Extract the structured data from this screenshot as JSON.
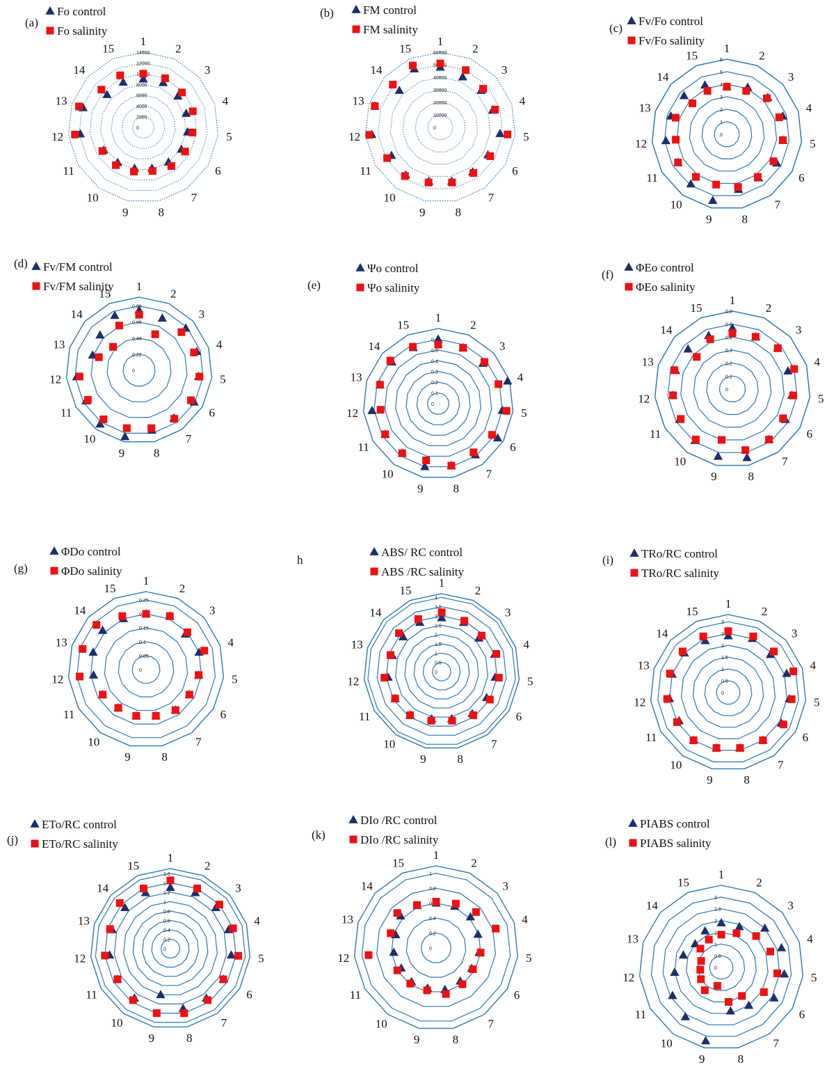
{
  "colors": {
    "control": "#1b2f6b",
    "salinity": "#ee1111",
    "grid": "#2b78b8"
  },
  "chart_data": [
    {
      "type": "radar",
      "panel": "(a)",
      "spoke_labels": [
        "1",
        "2",
        "3",
        "4",
        "5",
        "6",
        "7",
        "8",
        "9",
        "10",
        "11",
        "12",
        "13",
        "14",
        "15"
      ],
      "ticks": [
        "0",
        "2000",
        "4000",
        "6000",
        "8000",
        "10000",
        "12000",
        "14000"
      ],
      "rmax": 14000,
      "series": [
        {
          "name": "Fo control",
          "marker": "triangle",
          "values": [
            9000,
            9100,
            8700,
            8400,
            8300,
            8200,
            8000,
            7800,
            7800,
            8100,
            8500,
            11800,
            11800,
            9100,
            9200
          ]
        },
        {
          "name": "Fo salinity",
          "marker": "square",
          "values": [
            10000,
            10000,
            9700,
            9700,
            9200,
            9000,
            8900,
            8300,
            8400,
            8700,
            8800,
            12800,
            12600,
            10500,
            10600
          ]
        }
      ]
    },
    {
      "type": "radar",
      "panel": "(b)",
      "spoke_labels": [
        "1",
        "2",
        "3",
        "4",
        "5",
        "6",
        "7",
        "8",
        "9",
        "10",
        "11",
        "12",
        "13",
        "14",
        "15"
      ],
      "ticks": [
        "0",
        "10000",
        "20000",
        "30000",
        "40000",
        "50000",
        "60000"
      ],
      "rmax": 60000,
      "series": [
        {
          "name": "FM control",
          "marker": "triangle",
          "values": [
            48000,
            44000,
            44000,
            44000,
            48000,
            44000,
            44000,
            44000,
            44000,
            47000,
            45000,
            55000,
            55000,
            44000,
            51000
          ]
        },
        {
          "name": "FM salinity",
          "marker": "square",
          "values": [
            51000,
            50000,
            46000,
            46000,
            54000,
            46000,
            45000,
            45000,
            45000,
            48000,
            49000,
            57000,
            55000,
            51000,
            54000
          ]
        }
      ]
    },
    {
      "type": "radar",
      "panel": "(c)",
      "spoke_labels": [
        "1",
        "2",
        "3",
        "4",
        "5",
        "6",
        "7",
        "8",
        "9",
        "10",
        "11",
        "12",
        "13",
        "14",
        "15"
      ],
      "ticks": [
        "0",
        "1",
        "2",
        "3",
        "4",
        "5",
        "6"
      ],
      "rmax": 6,
      "series": [
        {
          "name": "Fv/Fo control",
          "marker": "triangle",
          "values": [
            3.8,
            4.1,
            4.4,
            4.7,
            4.5,
            4.6,
            4.3,
            4.5,
            5.4,
            4.9,
            4.5,
            4.9,
            4.7,
            4.6,
            4.3
          ]
        },
        {
          "name": "Fv/Fo salinity",
          "marker": "square",
          "values": [
            3.8,
            3.8,
            4.3,
            4.4,
            4.5,
            4.3,
            4.2,
            4.3,
            4.1,
            4.2,
            4.5,
            4.1,
            4.3,
            3.7,
            3.8
          ]
        }
      ]
    },
    {
      "type": "radar",
      "panel": "(d)",
      "spoke_labels": [
        "1",
        "2",
        "3",
        "4",
        "5",
        "6",
        "7",
        "8",
        "9",
        "10",
        "11",
        "12",
        "13",
        "14",
        "15"
      ],
      "ticks": [
        "0",
        "0.22",
        "0.44",
        "0.66",
        "0.88"
      ],
      "rmax": 1.0,
      "series": [
        {
          "name": "Fv/FM control",
          "marker": "triangle",
          "values": [
            0.82,
            0.78,
            0.86,
            0.83,
            0.82,
            0.87,
            0.81,
            0.84,
            0.93,
            0.91,
            0.84,
            0.86,
            0.67,
            0.72,
            0.82
          ]
        },
        {
          "name": "Fv/FM salinity",
          "marker": "square",
          "values": [
            0.76,
            0.54,
            0.78,
            0.79,
            0.83,
            0.82,
            0.82,
            0.81,
            0.81,
            0.83,
            0.81,
            0.82,
            0.58,
            0.48,
            0.67
          ]
        }
      ]
    },
    {
      "type": "radar",
      "panel": "(e)",
      "spoke_labels": [
        "1",
        "2",
        "3",
        "4",
        "5",
        "6",
        "7",
        "8",
        "9",
        "10",
        "11",
        "12",
        "13",
        "14",
        "15"
      ],
      "ticks": [
        "0",
        "0.1",
        "0.2",
        "0.3",
        "0.4",
        "0.5",
        "0.6"
      ],
      "rmax": 0.7,
      "series": [
        {
          "name": "Ψo control",
          "marker": "triangle",
          "values": [
            0.6,
            0.57,
            0.56,
            0.68,
            0.6,
            0.64,
            0.59,
            0.59,
            0.6,
            0.57,
            0.57,
            0.62,
            0.57,
            0.58,
            0.57
          ]
        },
        {
          "name": "Ψo salinity",
          "marker": "square",
          "values": [
            0.55,
            0.57,
            0.58,
            0.59,
            0.64,
            0.58,
            0.56,
            0.59,
            0.54,
            0.57,
            0.57,
            0.54,
            0.57,
            0.6,
            0.58
          ]
        }
      ]
    },
    {
      "type": "radar",
      "panel": "(f)",
      "spoke_labels": [
        "1",
        "2",
        "3",
        "4",
        "5",
        "6",
        "7",
        "8",
        "9",
        "10",
        "11",
        "12",
        "13",
        "14",
        "15"
      ],
      "ticks": [
        "0",
        "0.1",
        "0.2",
        "0.3",
        "0.4",
        "0.5",
        "0.6"
      ],
      "rmax": 0.6,
      "series": [
        {
          "name": "ΦEo control",
          "marker": "triangle",
          "values": [
            0.47,
            0.44,
            0.47,
            0.45,
            0.46,
            0.47,
            0.48,
            0.54,
            0.53,
            0.49,
            0.47,
            0.46,
            0.46,
            0.46,
            0.45
          ]
        },
        {
          "name": "ΦEo salinity",
          "marker": "square",
          "values": [
            0.43,
            0.44,
            0.47,
            0.5,
            0.47,
            0.45,
            0.48,
            0.48,
            0.4,
            0.48,
            0.46,
            0.46,
            0.47,
            0.37,
            0.42
          ]
        }
      ]
    },
    {
      "type": "radar",
      "panel": "(g)",
      "spoke_labels": [
        "1",
        "2",
        "3",
        "4",
        "5",
        "6",
        "7",
        "8",
        "9",
        "10",
        "11",
        "12",
        "13",
        "14",
        "15"
      ],
      "ticks": [
        "0",
        "0.05",
        "0.1",
        "0.15",
        "0.2",
        "0.25"
      ],
      "rmax": 0.28,
      "series": [
        {
          "name": "ΦDo control",
          "marker": "triangle",
          "values": [
            0.2,
            0.21,
            0.19,
            0.2,
            0.19,
            0.18,
            0.18,
            0.17,
            0.17,
            0.17,
            0.18,
            0.19,
            0.2,
            0.21,
            0.2
          ]
        },
        {
          "name": "ΦDo salinity",
          "marker": "square",
          "values": [
            0.2,
            0.21,
            0.2,
            0.22,
            0.19,
            0.18,
            0.18,
            0.17,
            0.17,
            0.17,
            0.18,
            0.24,
            0.24,
            0.24,
            0.21
          ]
        }
      ]
    },
    {
      "type": "radar",
      "panel": "h",
      "spoke_labels": [
        "1",
        "2",
        "3",
        "4",
        "5",
        "6",
        "7",
        "8",
        "9",
        "10",
        "11",
        "12",
        "13",
        "14",
        "15"
      ],
      "ticks": [
        "0",
        "0.5",
        "1",
        "1.5",
        "2",
        "2.5",
        "3",
        "3.5",
        "4"
      ],
      "rmax": 4.2,
      "series": [
        {
          "name": "ABS/ RC control",
          "marker": "triangle",
          "values": [
            2.9,
            2.9,
            2.7,
            3.0,
            2.9,
            2.8,
            2.8,
            2.6,
            2.6,
            2.9,
            2.9,
            2.9,
            2.8,
            2.8,
            2.9
          ]
        },
        {
          "name": "ABS /RC salinity",
          "marker": "square",
          "values": [
            3.2,
            3.0,
            2.9,
            3.1,
            3.1,
            3.0,
            2.9,
            2.7,
            2.7,
            2.9,
            2.9,
            3.1,
            2.9,
            3.1,
            3.1
          ]
        }
      ]
    },
    {
      "type": "radar",
      "panel": "(i)",
      "spoke_labels": [
        "1",
        "2",
        "3",
        "4",
        "5",
        "6",
        "7",
        "8",
        "9",
        "10",
        "11",
        "12",
        "13",
        "14",
        "15"
      ],
      "ticks": [
        "0",
        "0.5",
        "1",
        "1.5",
        "2",
        "2.5",
        "3"
      ],
      "rmax": 3.3,
      "series": [
        {
          "name": "TRo/RC control",
          "marker": "triangle",
          "values": [
            2.4,
            2.5,
            2.4,
            2.6,
            2.6,
            2.6,
            2.5,
            2.4,
            2.4,
            2.5,
            2.4,
            2.5,
            2.5,
            2.5,
            2.4
          ]
        },
        {
          "name": "TRo/RC salinity",
          "marker": "square",
          "values": [
            2.6,
            2.6,
            2.6,
            2.9,
            2.7,
            2.7,
            2.5,
            2.4,
            2.4,
            2.5,
            2.5,
            2.6,
            2.6,
            2.6,
            2.6
          ]
        }
      ]
    },
    {
      "type": "radar",
      "panel": "(j)",
      "spoke_labels": [
        "1",
        "2",
        "3",
        "4",
        "5",
        "6",
        "7",
        "8",
        "9",
        "10",
        "11",
        "12",
        "13",
        "14",
        "15"
      ],
      "ticks": [
        "0",
        "0.2",
        "0.4",
        "0.6",
        "0.8",
        "1",
        "1.2",
        "1.4",
        "1.6"
      ],
      "rmax": 1.7,
      "series": [
        {
          "name": "ETo/RC control",
          "marker": "triangle",
          "values": [
            1.3,
            1.3,
            1.3,
            1.3,
            1.3,
            1.3,
            1.3,
            1.3,
            1.0,
            1.3,
            1.3,
            1.3,
            1.3,
            1.3,
            1.3
          ]
        },
        {
          "name": "ETo/RC salinity",
          "marker": "square",
          "values": [
            1.45,
            1.4,
            1.4,
            1.4,
            1.45,
            1.3,
            1.35,
            1.4,
            1.4,
            1.35,
            1.3,
            1.4,
            1.35,
            1.45,
            1.4
          ]
        }
      ]
    },
    {
      "type": "radar",
      "panel": "(k)",
      "spoke_labels": [
        "1",
        "2",
        "3",
        "4",
        "5",
        "6",
        "7",
        "8",
        "9",
        "10",
        "11",
        "12",
        "13",
        "14",
        "15"
      ],
      "ticks": [
        "0",
        "0.2",
        "0.4",
        "0.6",
        "0.8",
        "1"
      ],
      "rmax": 1.1,
      "series": [
        {
          "name": "DIo /RC control",
          "marker": "triangle",
          "values": [
            0.6,
            0.61,
            0.62,
            0.59,
            0.58,
            0.55,
            0.55,
            0.57,
            0.55,
            0.56,
            0.54,
            0.57,
            0.57,
            0.64,
            0.62
          ]
        },
        {
          "name": "DIo /RC salinity",
          "marker": "square",
          "values": [
            0.62,
            0.65,
            0.72,
            0.84,
            0.6,
            0.57,
            0.6,
            0.63,
            0.58,
            0.59,
            0.6,
            0.91,
            0.64,
            0.7,
            0.63
          ]
        }
      ]
    },
    {
      "type": "radar",
      "panel": "(l)",
      "spoke_labels": [
        "1",
        "2",
        "3",
        "4",
        "5",
        "6",
        "7",
        "8",
        "9",
        "10",
        "11",
        "12",
        "13",
        "14",
        "15"
      ],
      "ticks": [
        "0",
        "0.5",
        "1",
        "1.5",
        "2",
        "2.5",
        "3"
      ],
      "rmax": 3.5,
      "series": [
        {
          "name": "PIABS control",
          "marker": "triangle",
          "values": [
            1.9,
            1.9,
            2.5,
            2.7,
            2.7,
            2.6,
            2.0,
            1.9,
            3.2,
            2.6,
            2.4,
            2.0,
            1.7,
            1.5,
            1.7
          ]
        },
        {
          "name": "PIABS salinity",
          "marker": "square",
          "values": [
            1.4,
            1.6,
            2.0,
            2.2,
            2.4,
            2.1,
            1.5,
            1.5,
            0.8,
            1.2,
            1.0,
            0.9,
            0.9,
            1.2,
            1.3
          ]
        }
      ]
    }
  ]
}
